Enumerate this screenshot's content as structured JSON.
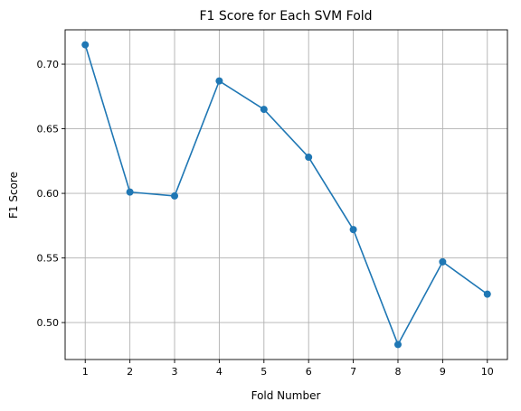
{
  "chart_data": {
    "type": "line",
    "title": "F1 Score for Each SVM Fold",
    "xlabel": "Fold Number",
    "ylabel": "F1 Score",
    "x": [
      1,
      2,
      3,
      4,
      5,
      6,
      7,
      8,
      9,
      10
    ],
    "xticks": [
      "1",
      "2",
      "3",
      "4",
      "5",
      "6",
      "7",
      "8",
      "9",
      "10"
    ],
    "yticks": [
      "0.50",
      "0.55",
      "0.60",
      "0.65",
      "0.70"
    ],
    "ytick_values": [
      0.5,
      0.55,
      0.6,
      0.65,
      0.7
    ],
    "series": [
      {
        "values": [
          0.715,
          0.601,
          0.598,
          0.687,
          0.665,
          0.628,
          0.572,
          0.483,
          0.547,
          0.522
        ],
        "color": "#1f77b4",
        "marker": "circle"
      }
    ],
    "xlim": [
      0.55,
      10.45
    ],
    "ylim": [
      0.4714,
      0.7266
    ],
    "grid": true,
    "legend": "none"
  }
}
